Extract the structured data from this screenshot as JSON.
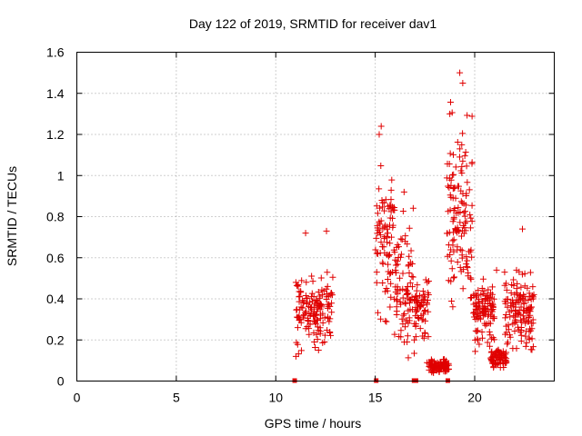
{
  "chart_data": {
    "type": "scatter",
    "title": "Day 122 of 2019, SRMTID for receiver dav1",
    "xlabel": "GPS time / hours",
    "ylabel": "SRMTID / TECUs",
    "xlim": [
      0,
      24
    ],
    "ylim": [
      0,
      1.6
    ],
    "xticks": [
      0,
      5,
      10,
      15,
      20
    ],
    "xtick_labels": [
      "0",
      "5",
      "10",
      "15",
      "20"
    ],
    "yticks": [
      0,
      0.2,
      0.4,
      0.6,
      0.8,
      1.0,
      1.2,
      1.4,
      1.6
    ],
    "ytick_labels": [
      "0",
      "0.2",
      "0.4",
      "0.6",
      "0.8",
      "1",
      "1.2",
      "1.4",
      "1.6"
    ],
    "grid": true,
    "marker": "+",
    "color": "#e00000",
    "clusters": [
      {
        "x_start": 11.0,
        "x_end": 12.9,
        "y_min": 0.06,
        "y_max": 0.6,
        "y_mean": 0.3,
        "n": 150
      },
      {
        "x_start": 15.0,
        "x_end": 16.0,
        "y_min": 0.1,
        "y_max": 1.24,
        "y_mean": 0.55,
        "n": 90
      },
      {
        "x_start": 16.0,
        "x_end": 17.0,
        "y_min": 0.05,
        "y_max": 0.92,
        "y_mean": 0.35,
        "n": 90
      },
      {
        "x_start": 17.0,
        "x_end": 17.7,
        "y_min": 0.1,
        "y_max": 0.56,
        "y_mean": 0.3,
        "n": 60
      },
      {
        "x_start": 17.6,
        "x_end": 18.7,
        "y_min": 0.02,
        "y_max": 0.12,
        "y_mean": 0.06,
        "n": 90
      },
      {
        "x_start": 18.6,
        "x_end": 19.9,
        "y_min": 0.2,
        "y_max": 1.5,
        "y_mean": 0.6,
        "n": 130
      },
      {
        "x_start": 19.9,
        "x_end": 21.0,
        "y_min": 0.1,
        "y_max": 0.54,
        "y_mean": 0.3,
        "n": 110
      },
      {
        "x_start": 20.8,
        "x_end": 21.6,
        "y_min": 0.03,
        "y_max": 0.18,
        "y_mean": 0.09,
        "n": 70
      },
      {
        "x_start": 21.5,
        "x_end": 23.0,
        "y_min": 0.08,
        "y_max": 0.62,
        "y_mean": 0.28,
        "n": 140
      }
    ],
    "notable_points": [
      {
        "x": 11.5,
        "y": 0.72
      },
      {
        "x": 12.55,
        "y": 0.73
      },
      {
        "x": 15.3,
        "y": 1.24
      },
      {
        "x": 15.2,
        "y": 1.2
      },
      {
        "x": 16.45,
        "y": 0.92
      },
      {
        "x": 18.75,
        "y": 1.3
      },
      {
        "x": 19.25,
        "y": 1.5
      },
      {
        "x": 19.4,
        "y": 1.45
      },
      {
        "x": 19.35,
        "y": 1.15
      },
      {
        "x": 19.4,
        "y": 1.07
      },
      {
        "x": 22.4,
        "y": 0.74
      },
      {
        "x": 21.1,
        "y": 0.54
      }
    ],
    "gap_markers_x": [
      10.95,
      15.05,
      16.95,
      17.05,
      18.65
    ]
  }
}
